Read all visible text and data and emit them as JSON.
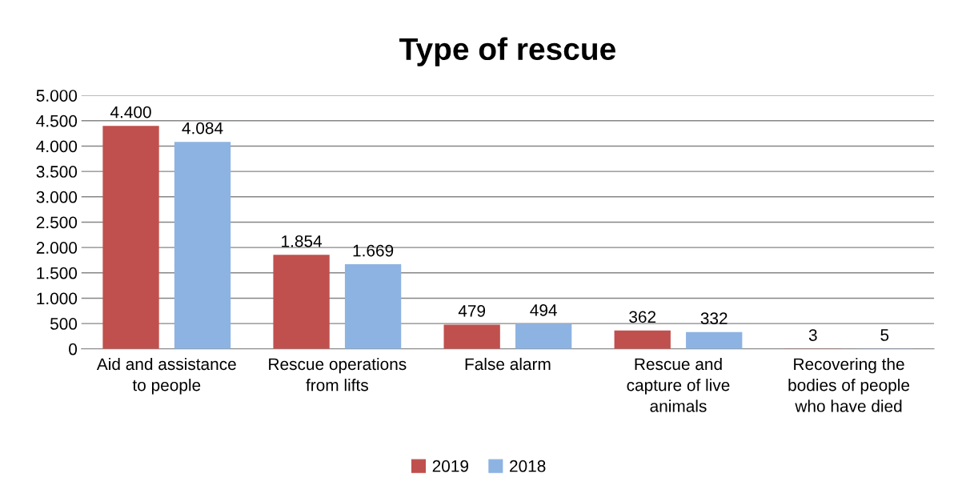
{
  "chart_data": {
    "type": "bar",
    "title": "Type of rescue",
    "categories": [
      "Aid and assistance\nto people",
      "Rescue operations\nfrom lifts",
      "False alarm",
      "Rescue and\ncapture of live\nanimals",
      "Recovering the\nbodies of people\nwho have died"
    ],
    "series": [
      {
        "name": "2019",
        "color": "#c0504d",
        "values": [
          4400,
          1854,
          479,
          362,
          3
        ],
        "value_labels": [
          "4.400",
          "1.854",
          "479",
          "362",
          "3"
        ]
      },
      {
        "name": "2018",
        "color": "#8db3e2",
        "values": [
          4084,
          1669,
          494,
          332,
          5
        ],
        "value_labels": [
          "4.084",
          "1.669",
          "494",
          "332",
          "5"
        ]
      }
    ],
    "ylim": [
      0,
      5000
    ],
    "yticks": [
      0,
      500,
      {
        "value": 1000,
        "label": "1.000"
      },
      {
        "value": 1500,
        "label": "1.500"
      },
      {
        "value": 2000,
        "label": "2.000"
      },
      {
        "value": 2500,
        "label": "2.500"
      },
      {
        "value": 3000,
        "label": "3.000"
      },
      {
        "value": 3500,
        "label": "3.500"
      },
      {
        "value": 4000,
        "label": "4.000"
      },
      {
        "value": 4500,
        "label": "4.500"
      },
      {
        "value": 5000,
        "label": "5.000"
      }
    ],
    "grid": "y",
    "legend": "bottom"
  }
}
